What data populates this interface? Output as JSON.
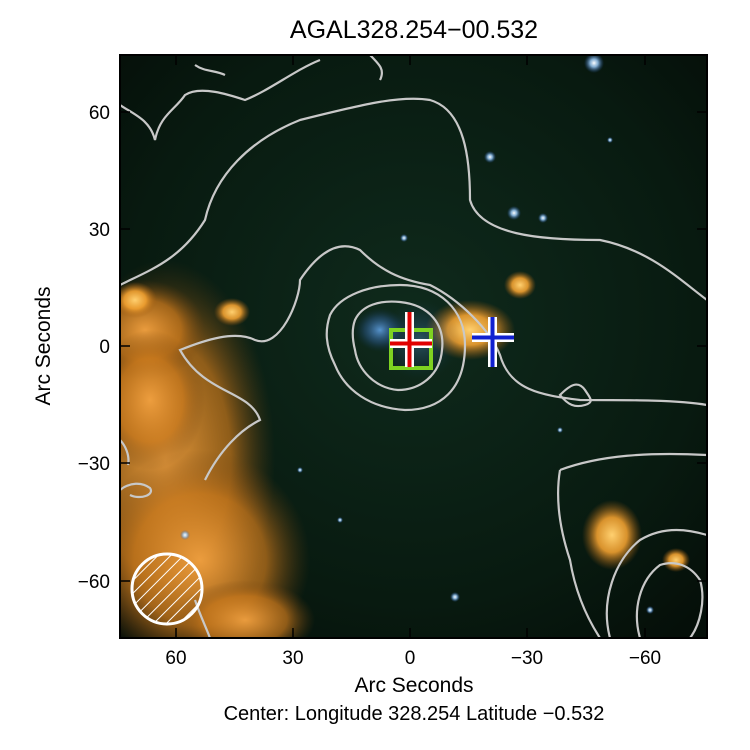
{
  "figure": {
    "title": "AGAL328.254−00.532",
    "xlabel": "Arc Seconds",
    "ylabel": "Arc Seconds",
    "caption": "Center:  Longitude 328.254 Latitude −0.532",
    "x_ticks": [
      "60",
      "30",
      "0",
      "−30",
      "−60"
    ],
    "y_ticks": [
      "60",
      "30",
      "0",
      "−30",
      "−60"
    ],
    "x_range": [
      75,
      -75
    ],
    "y_range": [
      -75,
      75
    ],
    "image": "false-color infrared sky image with grey contour lines",
    "markers": [
      {
        "name": "red-cross-marker",
        "icon": "cross-icon",
        "color": "#e00000"
      },
      {
        "name": "blue-cross-marker",
        "icon": "cross-icon",
        "color": "#1020d0"
      },
      {
        "name": "green-square-marker",
        "icon": "square-icon",
        "color": "#7ed321"
      },
      {
        "name": "beam-ellipse",
        "icon": "hatched-circle-icon",
        "color": "#ffffff"
      }
    ],
    "colors": {
      "background": "#0a1a12",
      "diffuse_emission": "#d88a2a",
      "contours": "#c8c8c8"
    }
  }
}
